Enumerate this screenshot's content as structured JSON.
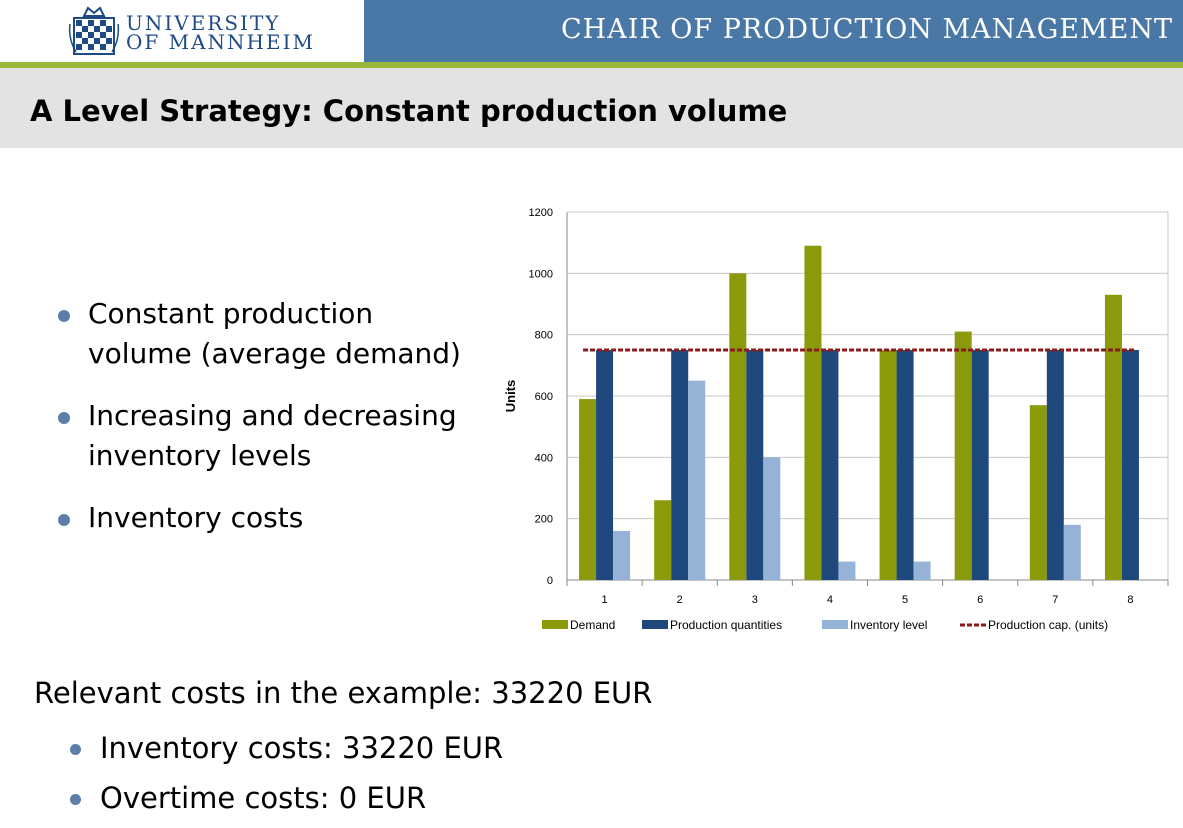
{
  "header": {
    "logo_line1": "UNIVERSITY",
    "logo_line2": "OF MANNHEIM",
    "chair": "CHAIR OF PRODUCTION MANAGEMENT"
  },
  "slide": {
    "title": "A Level Strategy: Constant production volume",
    "bullets": [
      "Constant production volume (average demand)",
      "Increasing and decreasing inventory levels",
      "Inventory costs"
    ],
    "costs_summary": "Relevant costs in the example: 33220 EUR",
    "sub_bullets": [
      "Inventory costs: 33220 EUR",
      "Overtime costs: 0 EUR"
    ]
  },
  "colors": {
    "header_blue": "#4a78a6",
    "accent_green": "#9ab93a",
    "demand": "#8a9a0a",
    "production": "#1f497d",
    "inventory": "#95b3d7",
    "capacity": "#8b1a1a"
  },
  "chart_data": {
    "type": "bar",
    "title": "",
    "xlabel": "",
    "ylabel": "Units",
    "ylim": [
      0,
      1200
    ],
    "yticks": [
      0,
      200,
      400,
      600,
      800,
      1000,
      1200
    ],
    "categories": [
      "1",
      "2",
      "3",
      "4",
      "5",
      "6",
      "7",
      "8"
    ],
    "series": [
      {
        "name": "Demand",
        "values": [
          590,
          260,
          1000,
          1090,
          750,
          810,
          570,
          930
        ]
      },
      {
        "name": "Production quantities",
        "values": [
          750,
          750,
          750,
          750,
          750,
          750,
          750,
          750
        ]
      },
      {
        "name": "Inventory level",
        "values": [
          160,
          650,
          400,
          60,
          60,
          0,
          180,
          0
        ]
      }
    ],
    "lines": [
      {
        "name": "Production cap. (units)",
        "value": 750,
        "style": "dashed"
      }
    ],
    "legend": "bottom"
  }
}
